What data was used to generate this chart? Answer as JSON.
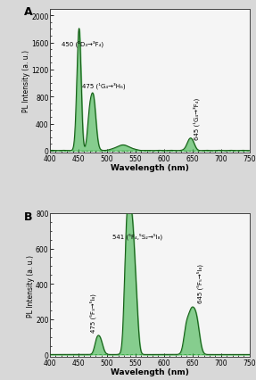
{
  "panel_A": {
    "label": "A",
    "ylabel": "PL Intensity (a. u.)",
    "xlabel": "Wavelength (nm)",
    "xlim": [
      400,
      750
    ],
    "ylim": [
      -30,
      2100
    ],
    "yticks": [
      0,
      400,
      800,
      1200,
      1600,
      2000
    ],
    "xticks": [
      400,
      450,
      500,
      550,
      600,
      650,
      700,
      750
    ],
    "ann_450": "450 (¹D₃→³F₄)",
    "ann_475": "475 (¹G₄→³H₆)",
    "ann_645": "645 (¹G₄→³F₄)",
    "line_color": "#1a5e1a",
    "fill_color": "#3cb34a",
    "bg_color": "#f5f5f5"
  },
  "panel_B": {
    "label": "B",
    "ylabel": "PL Intensity (a. u.)",
    "xlabel": "Wavelength (nm)",
    "xlim": [
      400,
      750
    ],
    "ylim": [
      -15,
      800
    ],
    "yticks": [
      0,
      200,
      400,
      600,
      800
    ],
    "xticks": [
      400,
      450,
      500,
      550,
      600,
      650,
      700,
      750
    ],
    "ann_475": "475 (⁵F₃→⁵I₈)",
    "ann_541": "541 (⁵F₄,⁵S₂→⁵I₈)",
    "ann_645": "645 (⁵F₅→⁵I₈)",
    "line_color": "#1a5e1a",
    "fill_color": "#3cb34a",
    "bg_color": "#f5f5f5"
  },
  "fig_bg": "#d8d8d8"
}
